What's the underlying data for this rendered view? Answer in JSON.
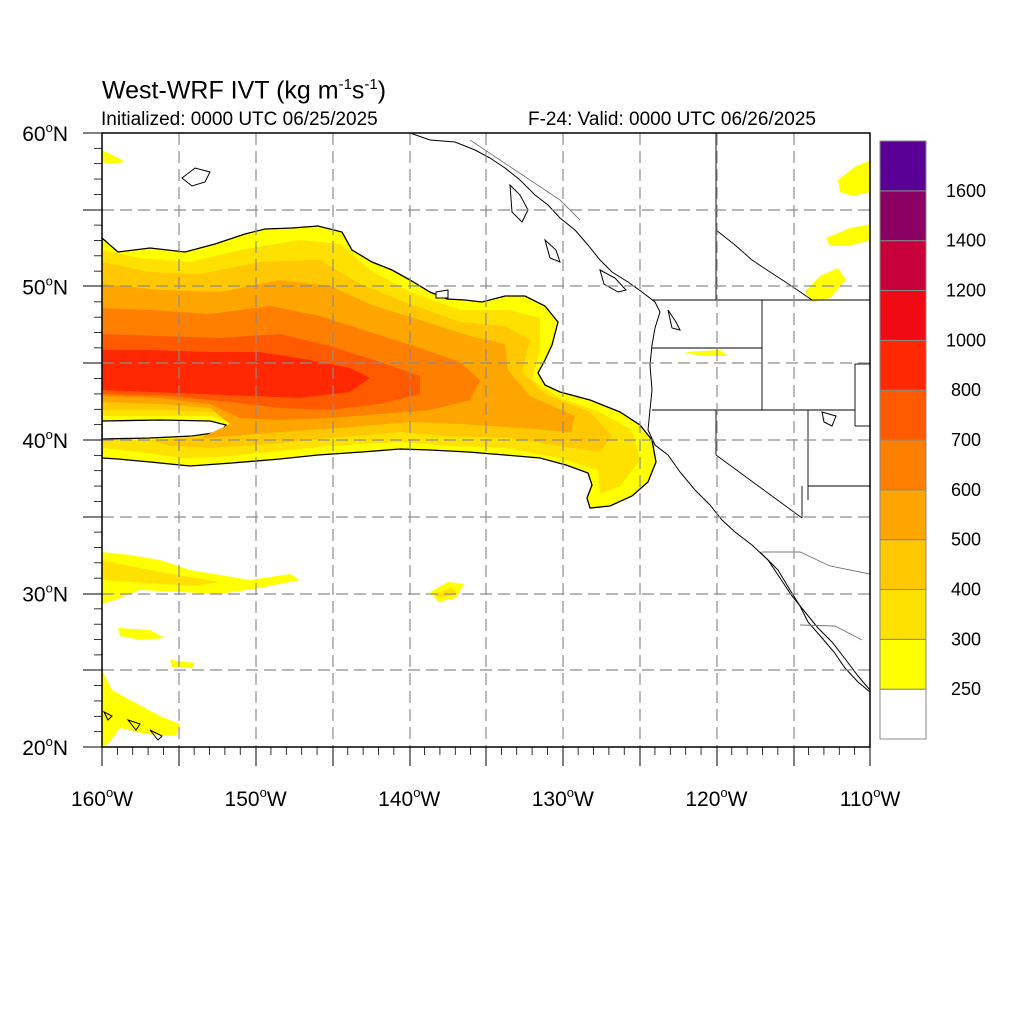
{
  "header": {
    "title_main": "West-WRF IVT (kg m",
    "title_exp1": "-1",
    "title_mid": "s",
    "title_exp2": "-1",
    "title_end": ")",
    "init": "Initialized: 0000 UTC 06/25/2025",
    "valid": "F-24: Valid: 0000 UTC 06/26/2025"
  },
  "map": {
    "lon_range": [
      -160,
      -110
    ],
    "lat_range": [
      20,
      60
    ],
    "lon_ticks": [
      {
        "value": -160,
        "label": "160",
        "suffix": "W"
      },
      {
        "value": -150,
        "label": "150",
        "suffix": "W"
      },
      {
        "value": -140,
        "label": "140",
        "suffix": "W"
      },
      {
        "value": -130,
        "label": "130",
        "suffix": "W"
      },
      {
        "value": -120,
        "label": "120",
        "suffix": "W"
      },
      {
        "value": -110,
        "label": "110",
        "suffix": "W"
      }
    ],
    "lat_ticks": [
      {
        "value": 60,
        "label": "60",
        "suffix": "N"
      },
      {
        "value": 50,
        "label": "50",
        "suffix": "N"
      },
      {
        "value": 40,
        "label": "40",
        "suffix": "N"
      },
      {
        "value": 30,
        "label": "30",
        "suffix": "N"
      },
      {
        "value": 20,
        "label": "20",
        "suffix": "N"
      }
    ],
    "gridlines": "dashed, every 5 degrees",
    "field": "IVT shaded by color bins",
    "colorbar": {
      "levels": [
        {
          "label": "250",
          "color": "#ffff00"
        },
        {
          "label": "300",
          "color": "#ffe100"
        },
        {
          "label": "400",
          "color": "#ffc800"
        },
        {
          "label": "500",
          "color": "#ffa500"
        },
        {
          "label": "600",
          "color": "#ff7f00"
        },
        {
          "label": "700",
          "color": "#ff5a00"
        },
        {
          "label": "800",
          "color": "#ff2800"
        },
        {
          "label": "1000",
          "color": "#f00a14"
        },
        {
          "label": "1200",
          "color": "#c8003c"
        },
        {
          "label": "1400",
          "color": "#8c0064"
        },
        {
          "label": "1600",
          "color": "#5a0096"
        }
      ]
    }
  }
}
